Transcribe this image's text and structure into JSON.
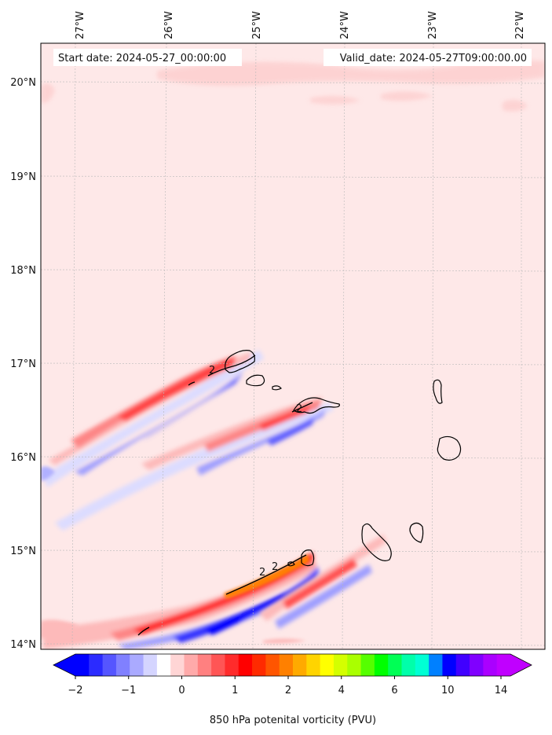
{
  "header": {
    "start_date": "Start date: 2024-05-27_00:00:00",
    "valid_date": "Valid_date: 2024-05-27T09:00:00.00"
  },
  "map": {
    "region": "Cape Verde islands",
    "lon_labels": [
      "27°W",
      "26°W",
      "25°W",
      "24°W",
      "23°W",
      "22°W"
    ],
    "lat_labels": [
      "20°N",
      "19°N",
      "18°N",
      "17°N",
      "16°N",
      "15°N",
      "14°N"
    ],
    "contour_labels": [
      "2",
      "2",
      "2",
      "2"
    ],
    "background_color": "#fee8e8"
  },
  "colorbar": {
    "label": "850 hPa potenital vorticity (PVU)",
    "tick_labels": [
      "−2",
      "−1",
      "0",
      "1",
      "2",
      "4",
      "6",
      "10",
      "14"
    ],
    "colors": [
      "#0000ff",
      "#2b2bff",
      "#5555ff",
      "#8080ff",
      "#aaaaff",
      "#d5d5ff",
      "#ffffff",
      "#ffd5d5",
      "#ffaaaa",
      "#ff8080",
      "#ff5555",
      "#ff2b2b",
      "#ff0000",
      "#ff2a00",
      "#ff5500",
      "#ff8000",
      "#ffaa00",
      "#ffd400",
      "#ffff00",
      "#d4ff00",
      "#aaff00",
      "#55ff00",
      "#00ff00",
      "#00ff55",
      "#00ffaa",
      "#00ffd4",
      "#0080ff",
      "#0000ff",
      "#4000ff",
      "#8000ff",
      "#aa00ff",
      "#c000ff"
    ],
    "under_color": "#0000ff",
    "over_color": "#c000ff"
  }
}
